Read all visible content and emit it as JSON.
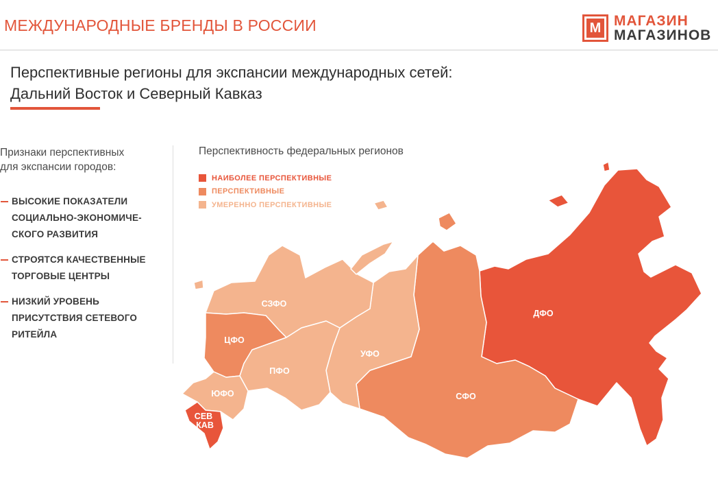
{
  "header": {
    "title": "МЕЖДУНАРОДНЫЕ БРЕНДЫ В РОССИИ",
    "logo": {
      "mark": "М",
      "line1": "МАГАЗИН",
      "line2": "МАГАЗИНОВ"
    }
  },
  "subtitle": {
    "line1": "Перспективные регионы для экспансии международных сетей:",
    "line2": "Дальний Восток и Северный Кавказ"
  },
  "left_panel": {
    "heading_line1": "Признаки перспективных",
    "heading_line2": "для экспансии городов:",
    "bullets": [
      "ВЫСОКИЕ ПОКАЗАТЕЛИ\nСОЦИАЛЬНО-ЭКОНОМИЧЕ-\nСКОГО РАЗВИТИЯ",
      "СТРОЯТСЯ КАЧЕСТВЕННЫЕ\nТОРГОВЫЕ ЦЕНТРЫ",
      "НИЗКИЙ УРОВЕНЬ\nПРИСУТСТВИЯ СЕТЕВОГО\nРИТЕЙЛА"
    ]
  },
  "map": {
    "title": "Перспективность федеральных регионов",
    "legend": [
      {
        "label": "НАИБОЛЕЕ ПЕРСПЕКТИВНЫЕ",
        "color": "#e8553a"
      },
      {
        "label": "ПЕРСПЕКТИВНЫЕ",
        "color": "#ee8a5f"
      },
      {
        "label": "УМЕРЕННО ПЕРСПЕКТИВНЫЕ",
        "color": "#f4b48e"
      }
    ],
    "regions": [
      {
        "id": "szfo",
        "label": "СЗФО",
        "level": "УМЕРЕННО ПЕРСПЕКТИВНЫЕ",
        "color": "#f4b48e"
      },
      {
        "id": "cfo",
        "label": "ЦФО",
        "level": "ПЕРСПЕКТИВНЫЕ",
        "color": "#ee8a5f"
      },
      {
        "id": "pfo",
        "label": "ПФО",
        "level": "УМЕРЕННО ПЕРСПЕКТИВНЫЕ",
        "color": "#f4b48e"
      },
      {
        "id": "yufo",
        "label": "ЮФО",
        "level": "УМЕРЕННО ПЕРСПЕКТИВНЫЕ",
        "color": "#f4b48e"
      },
      {
        "id": "skfo",
        "label": "СЕВ КАВ",
        "label_line1": "СЕВ",
        "label_line2": "КАВ",
        "level": "НАИБОЛЕЕ ПЕРСПЕКТИВНЫЕ",
        "color": "#e8553a"
      },
      {
        "id": "ufo",
        "label": "УФО",
        "level": "УМЕРЕННО ПЕРСПЕКТИВНЫЕ",
        "color": "#f4b48e"
      },
      {
        "id": "sfo",
        "label": "СФО",
        "level": "ПЕРСПЕКТИВНЫЕ",
        "color": "#ee8a5f"
      },
      {
        "id": "dfo",
        "label": "ДФО",
        "level": "НАИБОЛЕЕ ПЕРСПЕКТИВНЫЕ",
        "color": "#e8553a"
      }
    ]
  },
  "colors": {
    "accent": "#e2553a",
    "text": "#2f2f2f"
  }
}
